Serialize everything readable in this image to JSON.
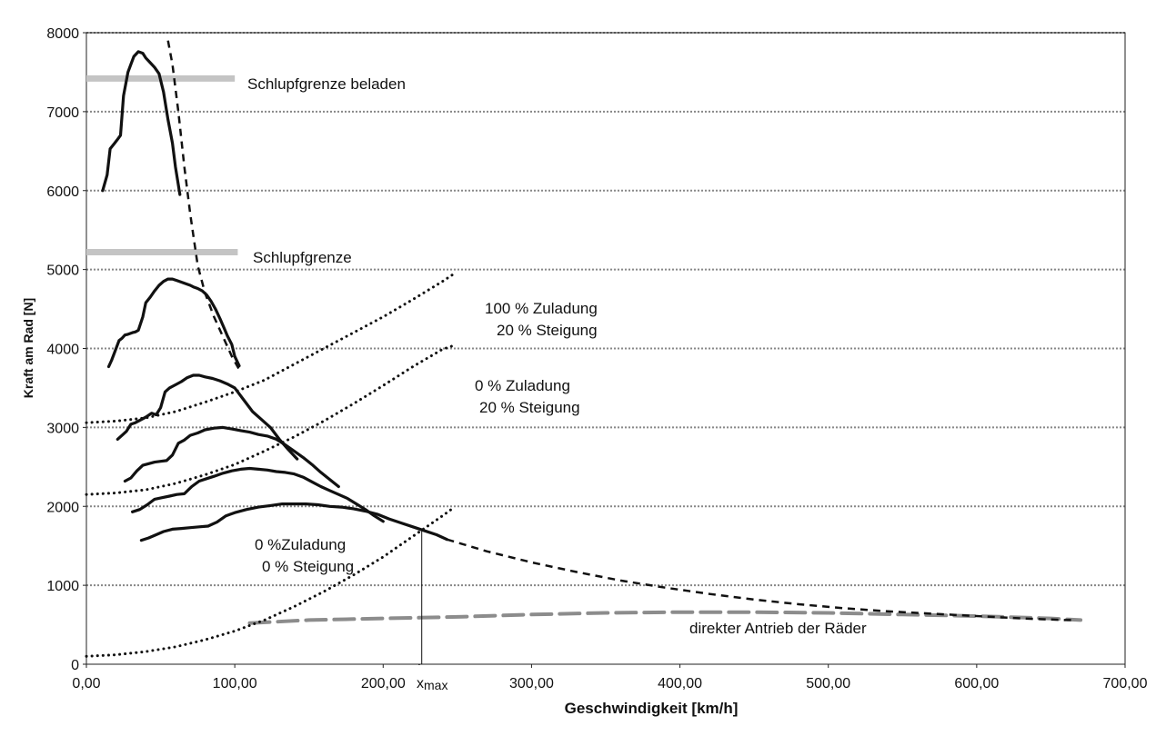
{
  "chart_data": {
    "type": "line",
    "title": "",
    "xlabel": "Geschwindigkeit [km/h]",
    "ylabel": "Kraft am Rad [N]",
    "xlim": [
      0,
      700
    ],
    "ylim": [
      0,
      8000
    ],
    "x_ticks": [
      0,
      100,
      200,
      300,
      400,
      500,
      600,
      700
    ],
    "x_tick_labels": [
      "0,00",
      "100,00",
      "200,00",
      "300,00",
      "400,00",
      "500,00",
      "600,00",
      "700,00"
    ],
    "y_ticks": [
      0,
      1000,
      2000,
      3000,
      4000,
      5000,
      6000,
      7000,
      8000
    ],
    "y_tick_labels": [
      "0",
      "1000",
      "2000",
      "3000",
      "4000",
      "5000",
      "6000",
      "7000",
      "8000"
    ],
    "grid": "horizontal dotted",
    "colors": {
      "curve": "#111111",
      "slip": "#c4c4c4",
      "direct": "#8c8c8c",
      "grid": "#888888"
    },
    "traction_curves": [
      {
        "x": [
          11,
          14,
          16,
          19,
          21,
          23,
          25,
          28,
          30,
          32,
          35,
          38,
          40,
          43,
          46,
          49,
          52,
          55,
          58,
          60,
          63
        ],
        "y": [
          6000,
          6200,
          6530,
          6600,
          6650,
          6700,
          7200,
          7500,
          7600,
          7700,
          7760,
          7740,
          7680,
          7620,
          7560,
          7480,
          7250,
          6900,
          6600,
          6300,
          5950
        ]
      },
      {
        "x": [
          15,
          17,
          19,
          22,
          24,
          26,
          28,
          31,
          33,
          35,
          38,
          40,
          43,
          46,
          49,
          52,
          55,
          58,
          61,
          64,
          67,
          70,
          72,
          75,
          78,
          81,
          84,
          87,
          90,
          93,
          95,
          98,
          100,
          103
        ],
        "y": [
          3770,
          3850,
          3950,
          4100,
          4130,
          4170,
          4180,
          4200,
          4210,
          4230,
          4400,
          4580,
          4650,
          4730,
          4800,
          4850,
          4880,
          4880,
          4860,
          4840,
          4820,
          4800,
          4780,
          4760,
          4730,
          4680,
          4600,
          4500,
          4380,
          4250,
          4160,
          4050,
          3900,
          3780
        ]
      },
      {
        "x": [
          21,
          24,
          27,
          30,
          33,
          37,
          40,
          44,
          47,
          50,
          53,
          56,
          60,
          64,
          68,
          72,
          76,
          80,
          85,
          90,
          95,
          100,
          106,
          112,
          118,
          124,
          130,
          136,
          142
        ],
        "y": [
          2850,
          2900,
          2950,
          3040,
          3060,
          3100,
          3130,
          3180,
          3160,
          3250,
          3450,
          3500,
          3540,
          3580,
          3630,
          3660,
          3660,
          3640,
          3620,
          3590,
          3550,
          3500,
          3350,
          3200,
          3100,
          3000,
          2850,
          2720,
          2600
        ]
      },
      {
        "x": [
          26,
          30,
          34,
          38,
          42,
          46,
          50,
          54,
          58,
          62,
          66,
          70,
          75,
          80,
          86,
          92,
          98,
          104,
          110,
          116,
          122,
          128,
          134,
          140,
          146,
          152,
          158,
          164,
          170
        ],
        "y": [
          2320,
          2360,
          2450,
          2520,
          2540,
          2560,
          2570,
          2580,
          2650,
          2800,
          2840,
          2900,
          2930,
          2970,
          2990,
          3000,
          2980,
          2960,
          2940,
          2910,
          2890,
          2850,
          2780,
          2700,
          2620,
          2530,
          2430,
          2340,
          2250
        ]
      },
      {
        "x": [
          31,
          36,
          41,
          46,
          51,
          56,
          61,
          66,
          71,
          76,
          81,
          86,
          92,
          98,
          104,
          110,
          116,
          122,
          128,
          134,
          140,
          146,
          152,
          158,
          164,
          170,
          176,
          182,
          188,
          194,
          200
        ],
        "y": [
          1930,
          1960,
          2020,
          2090,
          2110,
          2130,
          2150,
          2160,
          2250,
          2320,
          2350,
          2380,
          2420,
          2450,
          2470,
          2480,
          2470,
          2460,
          2440,
          2430,
          2410,
          2370,
          2310,
          2250,
          2200,
          2150,
          2100,
          2030,
          1960,
          1880,
          1810
        ]
      },
      {
        "x": [
          37,
          42,
          47,
          52,
          58,
          64,
          70,
          76,
          82,
          88,
          94,
          100,
          108,
          116,
          124,
          132,
          140,
          148,
          156,
          164,
          172,
          180,
          188,
          196,
          204,
          212,
          220,
          228,
          236,
          243
        ],
        "y": [
          1570,
          1600,
          1640,
          1680,
          1710,
          1720,
          1730,
          1740,
          1750,
          1800,
          1880,
          1920,
          1960,
          1990,
          2010,
          2030,
          2030,
          2030,
          2020,
          2000,
          1990,
          1970,
          1940,
          1900,
          1840,
          1790,
          1740,
          1690,
          1640,
          1580
        ]
      }
    ],
    "envelope_upper": {
      "x": [
        55,
        58,
        62,
        66,
        70,
        75,
        80,
        86,
        92,
        98,
        104
      ],
      "y": [
        7900,
        7600,
        7000,
        6300,
        5700,
        5050,
        4700,
        4400,
        4150,
        3900,
        3700
      ]
    },
    "envelope": {
      "x": [
        243,
        270,
        300,
        330,
        360,
        390,
        420,
        450,
        480,
        510,
        540,
        570,
        600,
        630,
        660,
        667
      ],
      "y": [
        1580,
        1430,
        1290,
        1170,
        1060,
        970,
        890,
        820,
        760,
        710,
        670,
        640,
        610,
        580,
        560,
        560
      ]
    },
    "resistance_curves": [
      {
        "name": "100 % Zuladung 20 % Steigung",
        "x": [
          0,
          20,
          40,
          60,
          80,
          100,
          120,
          140,
          160,
          180,
          200,
          220,
          240,
          248
        ],
        "y": [
          3060,
          3080,
          3120,
          3200,
          3320,
          3450,
          3600,
          3800,
          4000,
          4200,
          4400,
          4620,
          4850,
          4950
        ]
      },
      {
        "name": "0 % Zuladung 20 % Steigung",
        "x": [
          0,
          20,
          40,
          60,
          80,
          100,
          120,
          140,
          160,
          180,
          200,
          220,
          240,
          248
        ],
        "y": [
          2150,
          2170,
          2210,
          2290,
          2400,
          2530,
          2700,
          2880,
          3080,
          3300,
          3530,
          3770,
          3990,
          4040
        ]
      },
      {
        "name": "0 % Zuladung 0 % Steigung",
        "x": [
          0,
          20,
          40,
          60,
          80,
          100,
          120,
          140,
          160,
          180,
          200,
          220,
          240,
          248
        ],
        "y": [
          100,
          120,
          160,
          220,
          310,
          420,
          560,
          730,
          920,
          1130,
          1360,
          1620,
          1880,
          1990
        ]
      }
    ],
    "direct_drive": {
      "name": "direkter Antrieb der Räder",
      "x": [
        110,
        150,
        200,
        250,
        300,
        350,
        400,
        450,
        500,
        550,
        600,
        650,
        670
      ],
      "y": [
        520,
        560,
        580,
        600,
        630,
        650,
        660,
        660,
        650,
        630,
        610,
        580,
        560
      ]
    },
    "slip_limits": [
      {
        "name": "Schlupfgrenze beladen",
        "x": [
          0,
          100
        ],
        "y": 7420
      },
      {
        "name": "Schlupfgrenze",
        "x": [
          0,
          102
        ],
        "y": 5220
      }
    ],
    "vmax": {
      "x": 226,
      "y": 1700,
      "label_base": "x",
      "label_sub": "max"
    },
    "annotations": {
      "slip_loaded": "Schlupfgrenze beladen",
      "slip": "Schlupfgrenze",
      "res_100_line1": "100 % Zuladung",
      "res_100_line2": "20 % Steigung",
      "res_0_20_line1": "0 % Zuladung",
      "res_0_20_line2": "20 % Steigung",
      "res_0_0_line1": "0 %Zuladung",
      "res_0_0_line2": "0 % Steigung",
      "direct": "direkter Antrieb der Räder"
    }
  }
}
